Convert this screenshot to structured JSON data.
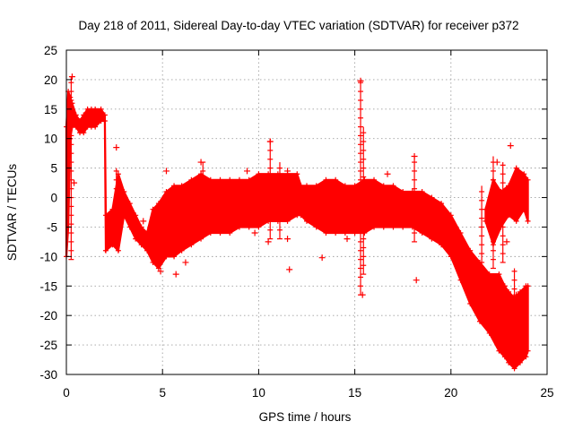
{
  "chart_data": {
    "type": "scatter",
    "title": "Day 218 of 2011, Sidereal Day-to-day VTEC variation (SDTVAR) for receiver p372",
    "xlabel": "GPS time / hours",
    "ylabel": "SDTVAR / TECUs",
    "xlim": [
      0,
      25
    ],
    "ylim": [
      -30,
      25
    ],
    "xticks": [
      0,
      5,
      10,
      15,
      20,
      25
    ],
    "yticks": [
      25,
      20,
      15,
      10,
      5,
      0,
      -5,
      -10,
      -15,
      -20,
      -25,
      -30
    ],
    "grid": true,
    "legend": "none",
    "series_color": "#ff0000",
    "series": [
      {
        "name": "SDTVAR",
        "marker": "plus",
        "band": {
          "x": [
            0.0,
            0.1,
            0.2,
            0.3,
            0.5,
            0.7,
            0.9,
            1.1,
            1.3,
            1.5,
            1.8,
            2.0,
            2.05,
            2.4,
            2.7,
            3.0,
            3.3,
            3.6,
            3.9,
            4.2,
            4.5,
            4.8,
            5.2,
            5.6,
            6.0,
            6.5,
            7.0,
            7.5,
            8.0,
            8.5,
            9.0,
            9.5,
            10.0,
            10.5,
            11.0,
            11.5,
            12.0,
            12.2,
            12.5,
            13.0,
            13.5,
            14.0,
            14.5,
            15.0,
            15.5,
            16.0,
            16.5,
            17.0,
            17.5,
            18.0,
            18.5,
            19.0,
            19.5,
            20.0,
            20.5,
            21.0,
            21.5,
            22.0,
            22.5,
            22.8,
            23.0,
            23.3,
            23.6,
            23.9,
            24.0
          ],
          "high": [
            12,
            18,
            17,
            16,
            14,
            13,
            14,
            15,
            15,
            15,
            15,
            14,
            -3,
            -2,
            4,
            1,
            -1,
            -3,
            -5,
            -6,
            -2,
            -1,
            1,
            2,
            2,
            3,
            4,
            3,
            3,
            3,
            3,
            3,
            4,
            4,
            4,
            4,
            4,
            2,
            2,
            2,
            3,
            3,
            2,
            2,
            3,
            3,
            2,
            2,
            1,
            1,
            1,
            0,
            -1,
            -3,
            -6,
            -9,
            -11,
            -13,
            -13,
            -15,
            -16,
            -17,
            -16,
            -15,
            -15
          ],
          "low": [
            -10,
            -5,
            10,
            12,
            12,
            11,
            11,
            12,
            12,
            12,
            13,
            13,
            -9,
            -8,
            -9,
            -3,
            -5,
            -7,
            -8,
            -9,
            -11,
            -12,
            -10,
            -10,
            -9,
            -8,
            -7,
            -6,
            -6,
            -6,
            -5,
            -5,
            -5,
            -4,
            -4,
            -4,
            -3,
            -3,
            -4,
            -5,
            -6,
            -6,
            -6,
            -6,
            -6,
            -5,
            -5,
            -5,
            -5,
            -5,
            -6,
            -7,
            -8,
            -10,
            -14,
            -18,
            -21,
            -23,
            -26,
            -27,
            -28,
            -29,
            -28,
            -27,
            -26
          ]
        },
        "band2": {
          "x": [
            21.8,
            22.2,
            22.6,
            23.0,
            23.4,
            23.8,
            24.0
          ],
          "high": [
            -2,
            3,
            1,
            2,
            5,
            4,
            3
          ],
          "low": [
            -4,
            -8,
            -5,
            -3,
            -4,
            -2,
            -4
          ]
        },
        "outliers": [
          {
            "x": 2.6,
            "y": 8.5
          },
          {
            "x": 5.2,
            "y": 4.5
          },
          {
            "x": 7.0,
            "y": 6.0
          },
          {
            "x": 9.4,
            "y": 4.5
          },
          {
            "x": 10.6,
            "y": 9.5
          },
          {
            "x": 10.5,
            "y": -7.5
          },
          {
            "x": 11.5,
            "y": -7.0
          },
          {
            "x": 11.5,
            "y": 4.5
          },
          {
            "x": 11.6,
            "y": -12.2
          },
          {
            "x": 13.3,
            "y": -10.2
          },
          {
            "x": 15.3,
            "y": 19.8
          },
          {
            "x": 15.4,
            "y": -16.5
          },
          {
            "x": 16.7,
            "y": 4.0
          },
          {
            "x": 18.1,
            "y": 7.0
          },
          {
            "x": 18.2,
            "y": -14.0
          },
          {
            "x": 23.1,
            "y": 8.8
          },
          {
            "x": 22.4,
            "y": 6.0
          },
          {
            "x": 0.3,
            "y": 20.5
          },
          {
            "x": 0.4,
            "y": 2.5
          },
          {
            "x": 1.8,
            "y": 13.5
          },
          {
            "x": 4.0,
            "y": -4.0
          },
          {
            "x": 4.9,
            "y": -12.5
          },
          {
            "x": 5.7,
            "y": -13.0
          },
          {
            "x": 6.2,
            "y": -11.0
          },
          {
            "x": 9.8,
            "y": -6.0
          },
          {
            "x": 14.6,
            "y": -7.0
          },
          {
            "x": 21.1,
            "y": -10.0
          },
          {
            "x": 23.6,
            "y": -20.0
          },
          {
            "x": 23.4,
            "y": -16.5
          },
          {
            "x": 22.9,
            "y": -7.5
          }
        ],
        "spikes": [
          {
            "x": 15.3,
            "ylow": -16.5,
            "yhigh": 19.8
          },
          {
            "x": 15.45,
            "ylow": -13.0,
            "yhigh": 12.0
          },
          {
            "x": 10.6,
            "ylow": -7.0,
            "yhigh": 10.0
          },
          {
            "x": 11.1,
            "ylow": -7.0,
            "yhigh": 6.0
          },
          {
            "x": 18.1,
            "ylow": -7.5,
            "yhigh": 7.0
          },
          {
            "x": 2.6,
            "ylow": -6.0,
            "yhigh": 5.0
          },
          {
            "x": 0.25,
            "ylow": -10.5,
            "yhigh": 20.5
          },
          {
            "x": 7.1,
            "ylow": -6.0,
            "yhigh": 6.0
          },
          {
            "x": 22.2,
            "ylow": -12.0,
            "yhigh": 7.0
          },
          {
            "x": 22.7,
            "ylow": -11.0,
            "yhigh": 6.0
          },
          {
            "x": 21.6,
            "ylow": -14.0,
            "yhigh": 2.0
          },
          {
            "x": 23.3,
            "ylow": -20.0,
            "yhigh": -12.0
          }
        ]
      }
    ]
  }
}
